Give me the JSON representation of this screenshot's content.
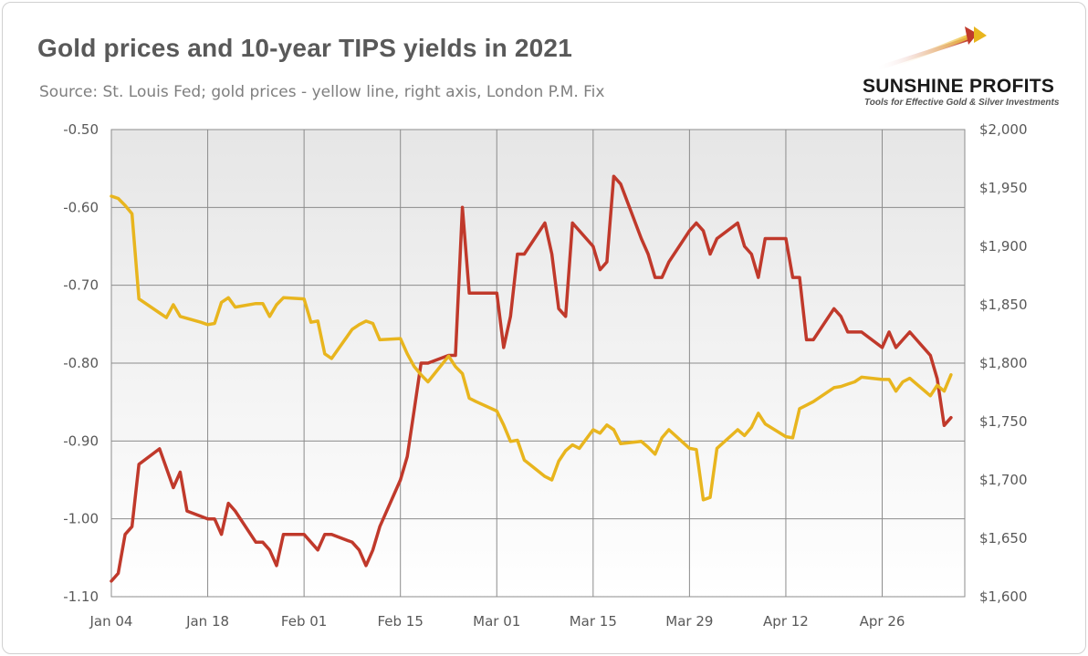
{
  "header": {
    "title": "Gold prices and 10-year TIPS yields in 2021",
    "subtitle": "Source: St. Louis Fed; gold prices - yellow line, right axis, London P.M. Fix"
  },
  "logo": {
    "name": "SUNSHINE PROFITS",
    "tagline": "Tools for Effective Gold & Silver Investments"
  },
  "chart_data": {
    "type": "line",
    "title": "Gold prices and 10-year TIPS yields in 2021",
    "x_tick_labels": [
      "Jan 04",
      "Jan 18",
      "Feb 01",
      "Feb 15",
      "Mar 01",
      "Mar 15",
      "Mar 29",
      "Apr 12",
      "Apr 26"
    ],
    "x_range_days": [
      0,
      124
    ],
    "left_axis": {
      "ylim": [
        -1.1,
        -0.5
      ],
      "tick_labels": [
        "-0.50",
        "-0.60",
        "-0.70",
        "-0.80",
        "-0.90",
        "-1.00",
        "-1.10"
      ]
    },
    "right_axis": {
      "ylim": [
        1600,
        2000
      ],
      "tick_labels": [
        "$2,000",
        "$1,950",
        "$1,900",
        "$1,850",
        "$1,800",
        "$1,750",
        "$1,700",
        "$1,650",
        "$1,600"
      ]
    },
    "grid": true,
    "colors": {
      "tips": "#c0392b",
      "gold": "#e8b51e",
      "plot_bg_top": "#e6e6e6",
      "plot_bg_bottom": "#ffffff",
      "grid": "#8c8c8c"
    },
    "series": [
      {
        "axis": "left",
        "points": [
          [
            0,
            -1.08
          ],
          [
            1,
            -1.07
          ],
          [
            2,
            -1.02
          ],
          [
            3,
            -1.01
          ],
          [
            4,
            -0.93
          ],
          [
            7,
            -0.91
          ],
          [
            9,
            -0.96
          ],
          [
            10,
            -0.94
          ],
          [
            11,
            -0.99
          ],
          [
            14,
            -1.0
          ],
          [
            15,
            -1.0
          ],
          [
            16,
            -1.02
          ],
          [
            17,
            -0.98
          ],
          [
            18,
            -0.99
          ],
          [
            21,
            -1.03
          ],
          [
            22,
            -1.03
          ],
          [
            23,
            -1.04
          ],
          [
            24,
            -1.06
          ],
          [
            25,
            -1.02
          ],
          [
            28,
            -1.02
          ],
          [
            29,
            -1.03
          ],
          [
            30,
            -1.04
          ],
          [
            31,
            -1.02
          ],
          [
            32,
            -1.02
          ],
          [
            35,
            -1.03
          ],
          [
            36,
            -1.04
          ],
          [
            37,
            -1.06
          ],
          [
            38,
            -1.04
          ],
          [
            39,
            -1.01
          ],
          [
            42,
            -0.95
          ],
          [
            43,
            -0.92
          ],
          [
            44,
            -0.86
          ],
          [
            45,
            -0.8
          ],
          [
            46,
            -0.8
          ],
          [
            49,
            -0.79
          ],
          [
            50,
            -0.79
          ],
          [
            51,
            -0.6
          ],
          [
            52,
            -0.71
          ],
          [
            53,
            -0.71
          ],
          [
            56,
            -0.71
          ],
          [
            57,
            -0.78
          ],
          [
            58,
            -0.74
          ],
          [
            59,
            -0.66
          ],
          [
            60,
            -0.66
          ],
          [
            63,
            -0.62
          ],
          [
            64,
            -0.66
          ],
          [
            65,
            -0.73
          ],
          [
            66,
            -0.74
          ],
          [
            67,
            -0.62
          ],
          [
            70,
            -0.65
          ],
          [
            71,
            -0.68
          ],
          [
            72,
            -0.67
          ],
          [
            73,
            -0.56
          ],
          [
            74,
            -0.57
          ],
          [
            77,
            -0.64
          ],
          [
            78,
            -0.66
          ],
          [
            79,
            -0.69
          ],
          [
            80,
            -0.69
          ],
          [
            81,
            -0.67
          ],
          [
            84,
            -0.63
          ],
          [
            85,
            -0.62
          ],
          [
            86,
            -0.63
          ],
          [
            87,
            -0.66
          ],
          [
            88,
            -0.64
          ],
          [
            91,
            -0.62
          ],
          [
            92,
            -0.65
          ],
          [
            93,
            -0.66
          ],
          [
            94,
            -0.69
          ],
          [
            95,
            -0.64
          ],
          [
            98,
            -0.64
          ],
          [
            99,
            -0.69
          ],
          [
            100,
            -0.69
          ],
          [
            101,
            -0.77
          ],
          [
            102,
            -0.77
          ],
          [
            105,
            -0.73
          ],
          [
            106,
            -0.74
          ],
          [
            107,
            -0.76
          ],
          [
            108,
            -0.76
          ],
          [
            109,
            -0.76
          ],
          [
            112,
            -0.78
          ],
          [
            113,
            -0.76
          ],
          [
            114,
            -0.78
          ],
          [
            115,
            -0.77
          ],
          [
            116,
            -0.76
          ],
          [
            119,
            -0.79
          ],
          [
            120,
            -0.82
          ],
          [
            121,
            -0.88
          ],
          [
            122,
            -0.87
          ]
        ]
      },
      {
        "axis": "right",
        "points": [
          [
            0,
            1943
          ],
          [
            1,
            1941
          ],
          [
            2,
            1935
          ],
          [
            3,
            1928
          ],
          [
            4,
            1855
          ],
          [
            7,
            1843
          ],
          [
            8,
            1839
          ],
          [
            9,
            1850
          ],
          [
            10,
            1840
          ],
          [
            13,
            1835
          ],
          [
            14,
            1833
          ],
          [
            15,
            1834
          ],
          [
            16,
            1852
          ],
          [
            17,
            1856
          ],
          [
            18,
            1848
          ],
          [
            21,
            1851
          ],
          [
            22,
            1851
          ],
          [
            23,
            1840
          ],
          [
            24,
            1850
          ],
          [
            25,
            1856
          ],
          [
            28,
            1855
          ],
          [
            29,
            1835
          ],
          [
            30,
            1836
          ],
          [
            31,
            1808
          ],
          [
            32,
            1804
          ],
          [
            35,
            1829
          ],
          [
            36,
            1833
          ],
          [
            37,
            1836
          ],
          [
            38,
            1834
          ],
          [
            39,
            1820
          ],
          [
            42,
            1821
          ],
          [
            43,
            1808
          ],
          [
            44,
            1797
          ],
          [
            45,
            1790
          ],
          [
            46,
            1784
          ],
          [
            49,
            1806
          ],
          [
            50,
            1797
          ],
          [
            51,
            1791
          ],
          [
            52,
            1770
          ],
          [
            53,
            1767
          ],
          [
            56,
            1759
          ],
          [
            57,
            1747
          ],
          [
            58,
            1733
          ],
          [
            59,
            1734
          ],
          [
            60,
            1717
          ],
          [
            63,
            1703
          ],
          [
            64,
            1700
          ],
          [
            65,
            1716
          ],
          [
            66,
            1725
          ],
          [
            67,
            1730
          ],
          [
            68,
            1727
          ],
          [
            70,
            1743
          ],
          [
            71,
            1740
          ],
          [
            72,
            1747
          ],
          [
            73,
            1743
          ],
          [
            74,
            1731
          ],
          [
            77,
            1733
          ],
          [
            78,
            1728
          ],
          [
            79,
            1722
          ],
          [
            80,
            1736
          ],
          [
            81,
            1743
          ],
          [
            84,
            1727
          ],
          [
            85,
            1726
          ],
          [
            86,
            1683
          ],
          [
            87,
            1685
          ],
          [
            88,
            1727
          ],
          [
            91,
            1743
          ],
          [
            92,
            1738
          ],
          [
            93,
            1745
          ],
          [
            94,
            1757
          ],
          [
            95,
            1748
          ],
          [
            98,
            1737
          ],
          [
            99,
            1736
          ],
          [
            100,
            1761
          ],
          [
            101,
            1764
          ],
          [
            102,
            1767
          ],
          [
            105,
            1779
          ],
          [
            106,
            1780
          ],
          [
            107,
            1782
          ],
          [
            108,
            1784
          ],
          [
            109,
            1788
          ],
          [
            112,
            1786
          ],
          [
            113,
            1786
          ],
          [
            114,
            1776
          ],
          [
            115,
            1784
          ],
          [
            116,
            1787
          ],
          [
            119,
            1772
          ],
          [
            120,
            1781
          ],
          [
            121,
            1776
          ],
          [
            122,
            1790
          ]
        ]
      }
    ]
  }
}
